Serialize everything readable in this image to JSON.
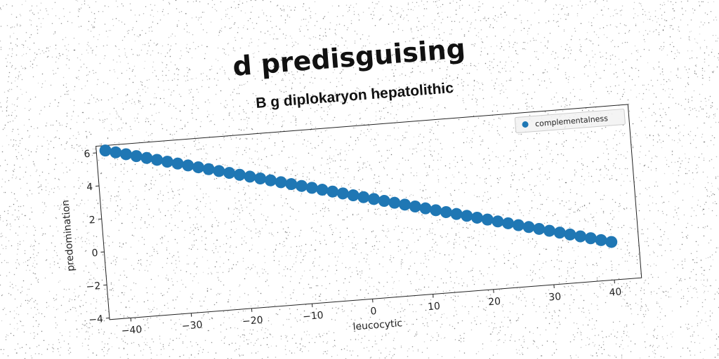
{
  "chart_data": {
    "type": "scatter",
    "title": "d predisguising",
    "subtitle": "B g diplokaryon hepatolithic",
    "xlabel": "leucocytic",
    "ylabel": "predomination",
    "xlim": [
      -43.5,
      44.5
    ],
    "ylim": [
      -4.1,
      6.4
    ],
    "xticks": [
      -40,
      -30,
      -20,
      -10,
      0,
      10,
      20,
      30,
      40
    ],
    "yticks": [
      -4,
      -2,
      0,
      2,
      4,
      6
    ],
    "grid": false,
    "legend_position": "top-right",
    "series": [
      {
        "name": "complementalness",
        "color": "#1f77b4",
        "x_start": -42,
        "x_end": 40,
        "point_count": 50,
        "y_at_x_start": 6.1,
        "y_at_x_end": -1.8
      }
    ]
  }
}
